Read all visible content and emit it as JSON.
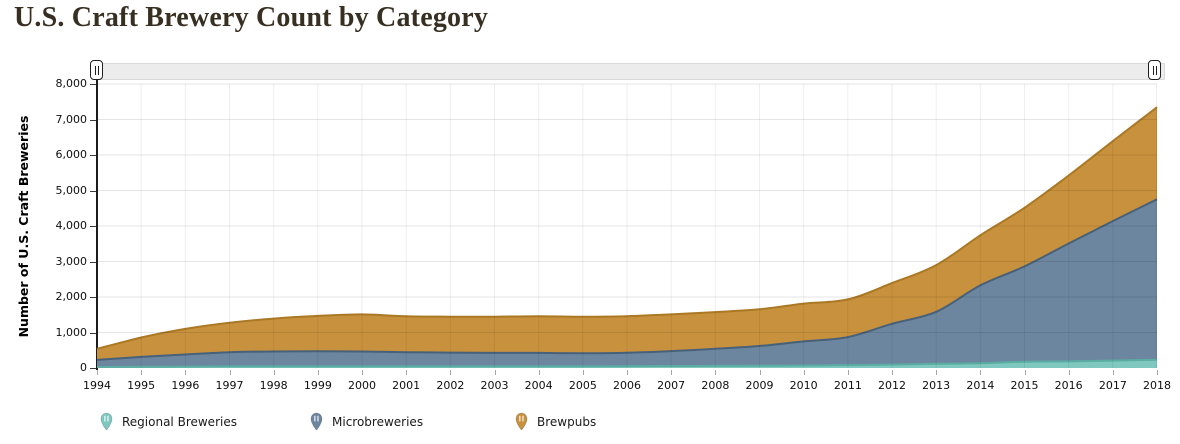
{
  "page": {
    "title": "U.S. Craft Brewery Count by Category"
  },
  "colors": {
    "title_text": "#372f22",
    "axis_line": "#1c1c1c",
    "scrollbar_track": "#ececec",
    "regional_fill": "#7EC8BF",
    "micro_fill": "#6C86A0",
    "brewpub_fill": "#C8913E"
  },
  "chart_data": {
    "type": "area",
    "stacked": true,
    "title": "U.S. Craft Brewery Count by Category",
    "xlabel": "",
    "ylabel": "Number of U.S. Craft Breweries",
    "ylim": [
      0,
      8000
    ],
    "y_tick_step": 1000,
    "y_ticks": [
      "0",
      "1,000",
      "2,000",
      "3,000",
      "4,000",
      "5,000",
      "6,000",
      "7,000",
      "8,000"
    ],
    "grid": true,
    "legend_position": "bottom",
    "years": [
      1994,
      1995,
      1996,
      1997,
      1998,
      1999,
      2000,
      2001,
      2002,
      2003,
      2004,
      2005,
      2006,
      2007,
      2008,
      2009,
      2010,
      2011,
      2012,
      2013,
      2014,
      2015,
      2016,
      2017,
      2018
    ],
    "series": [
      {
        "name": "Regional Breweries",
        "color": "#7EC8BF",
        "stroke": "#5BAca2",
        "values": [
          28,
          33,
          40,
          44,
          45,
          45,
          45,
          45,
          45,
          45,
          45,
          45,
          50,
          55,
          60,
          65,
          70,
          81,
          97,
          119,
          135,
          178,
          186,
          209,
          230
        ]
      },
      {
        "name": "Microbreweries",
        "color": "#6C86A0",
        "stroke": "#47617b",
        "values": [
          201,
          280,
          340,
          400,
          420,
          425,
          420,
          400,
          390,
          380,
          380,
          370,
          380,
          420,
          480,
          555,
          680,
          789,
          1149,
          1464,
          2191,
          2684,
          3320,
          3929,
          4522
        ]
      },
      {
        "name": "Brewpubs",
        "color": "#C8913E",
        "stroke": "#ab7824",
        "values": [
          308,
          545,
          720,
          829,
          927,
          998,
          1044,
          1013,
          1010,
          1020,
          1035,
          1030,
          1030,
          1036,
          1035,
          1033,
          1063,
          1063,
          1146,
          1315,
          1412,
          1650,
          1916,
          2252,
          2594
        ]
      }
    ]
  }
}
